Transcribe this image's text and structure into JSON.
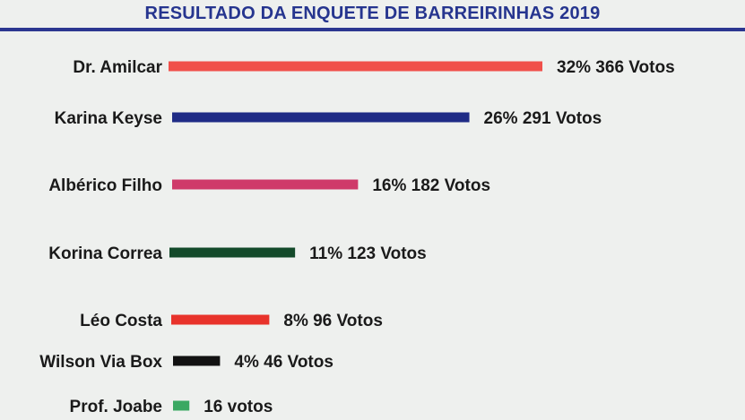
{
  "chart_data": {
    "type": "bar",
    "orientation": "horizontal",
    "title": "RESULTADO DA ENQUETE DE BARREIRINHAS 2019",
    "categories": [
      "Dr. Amilcar",
      "Karina Keyse",
      "Albérico Filho",
      "Korina Correa",
      "Léo Costa",
      "Wilson Via Box",
      "Prof. Joabe"
    ],
    "values": [
      366,
      291,
      182,
      123,
      96,
      46,
      16
    ],
    "percents": [
      32,
      26,
      16,
      11,
      8,
      4,
      null
    ],
    "value_labels": [
      "32% 366 Votos",
      "26% 291 Votos",
      "16% 182 Votos",
      "11% 123 Votos",
      "8% 96 Votos",
      "4% 46 Votos",
      "16 votos"
    ],
    "colors": [
      "#f0504a",
      "#1f2b86",
      "#cf3a6a",
      "#134a2a",
      "#e8332b",
      "#121212",
      "#3aa862"
    ],
    "xlabel": "",
    "ylabel": "",
    "grid": false,
    "legend": "none"
  }
}
